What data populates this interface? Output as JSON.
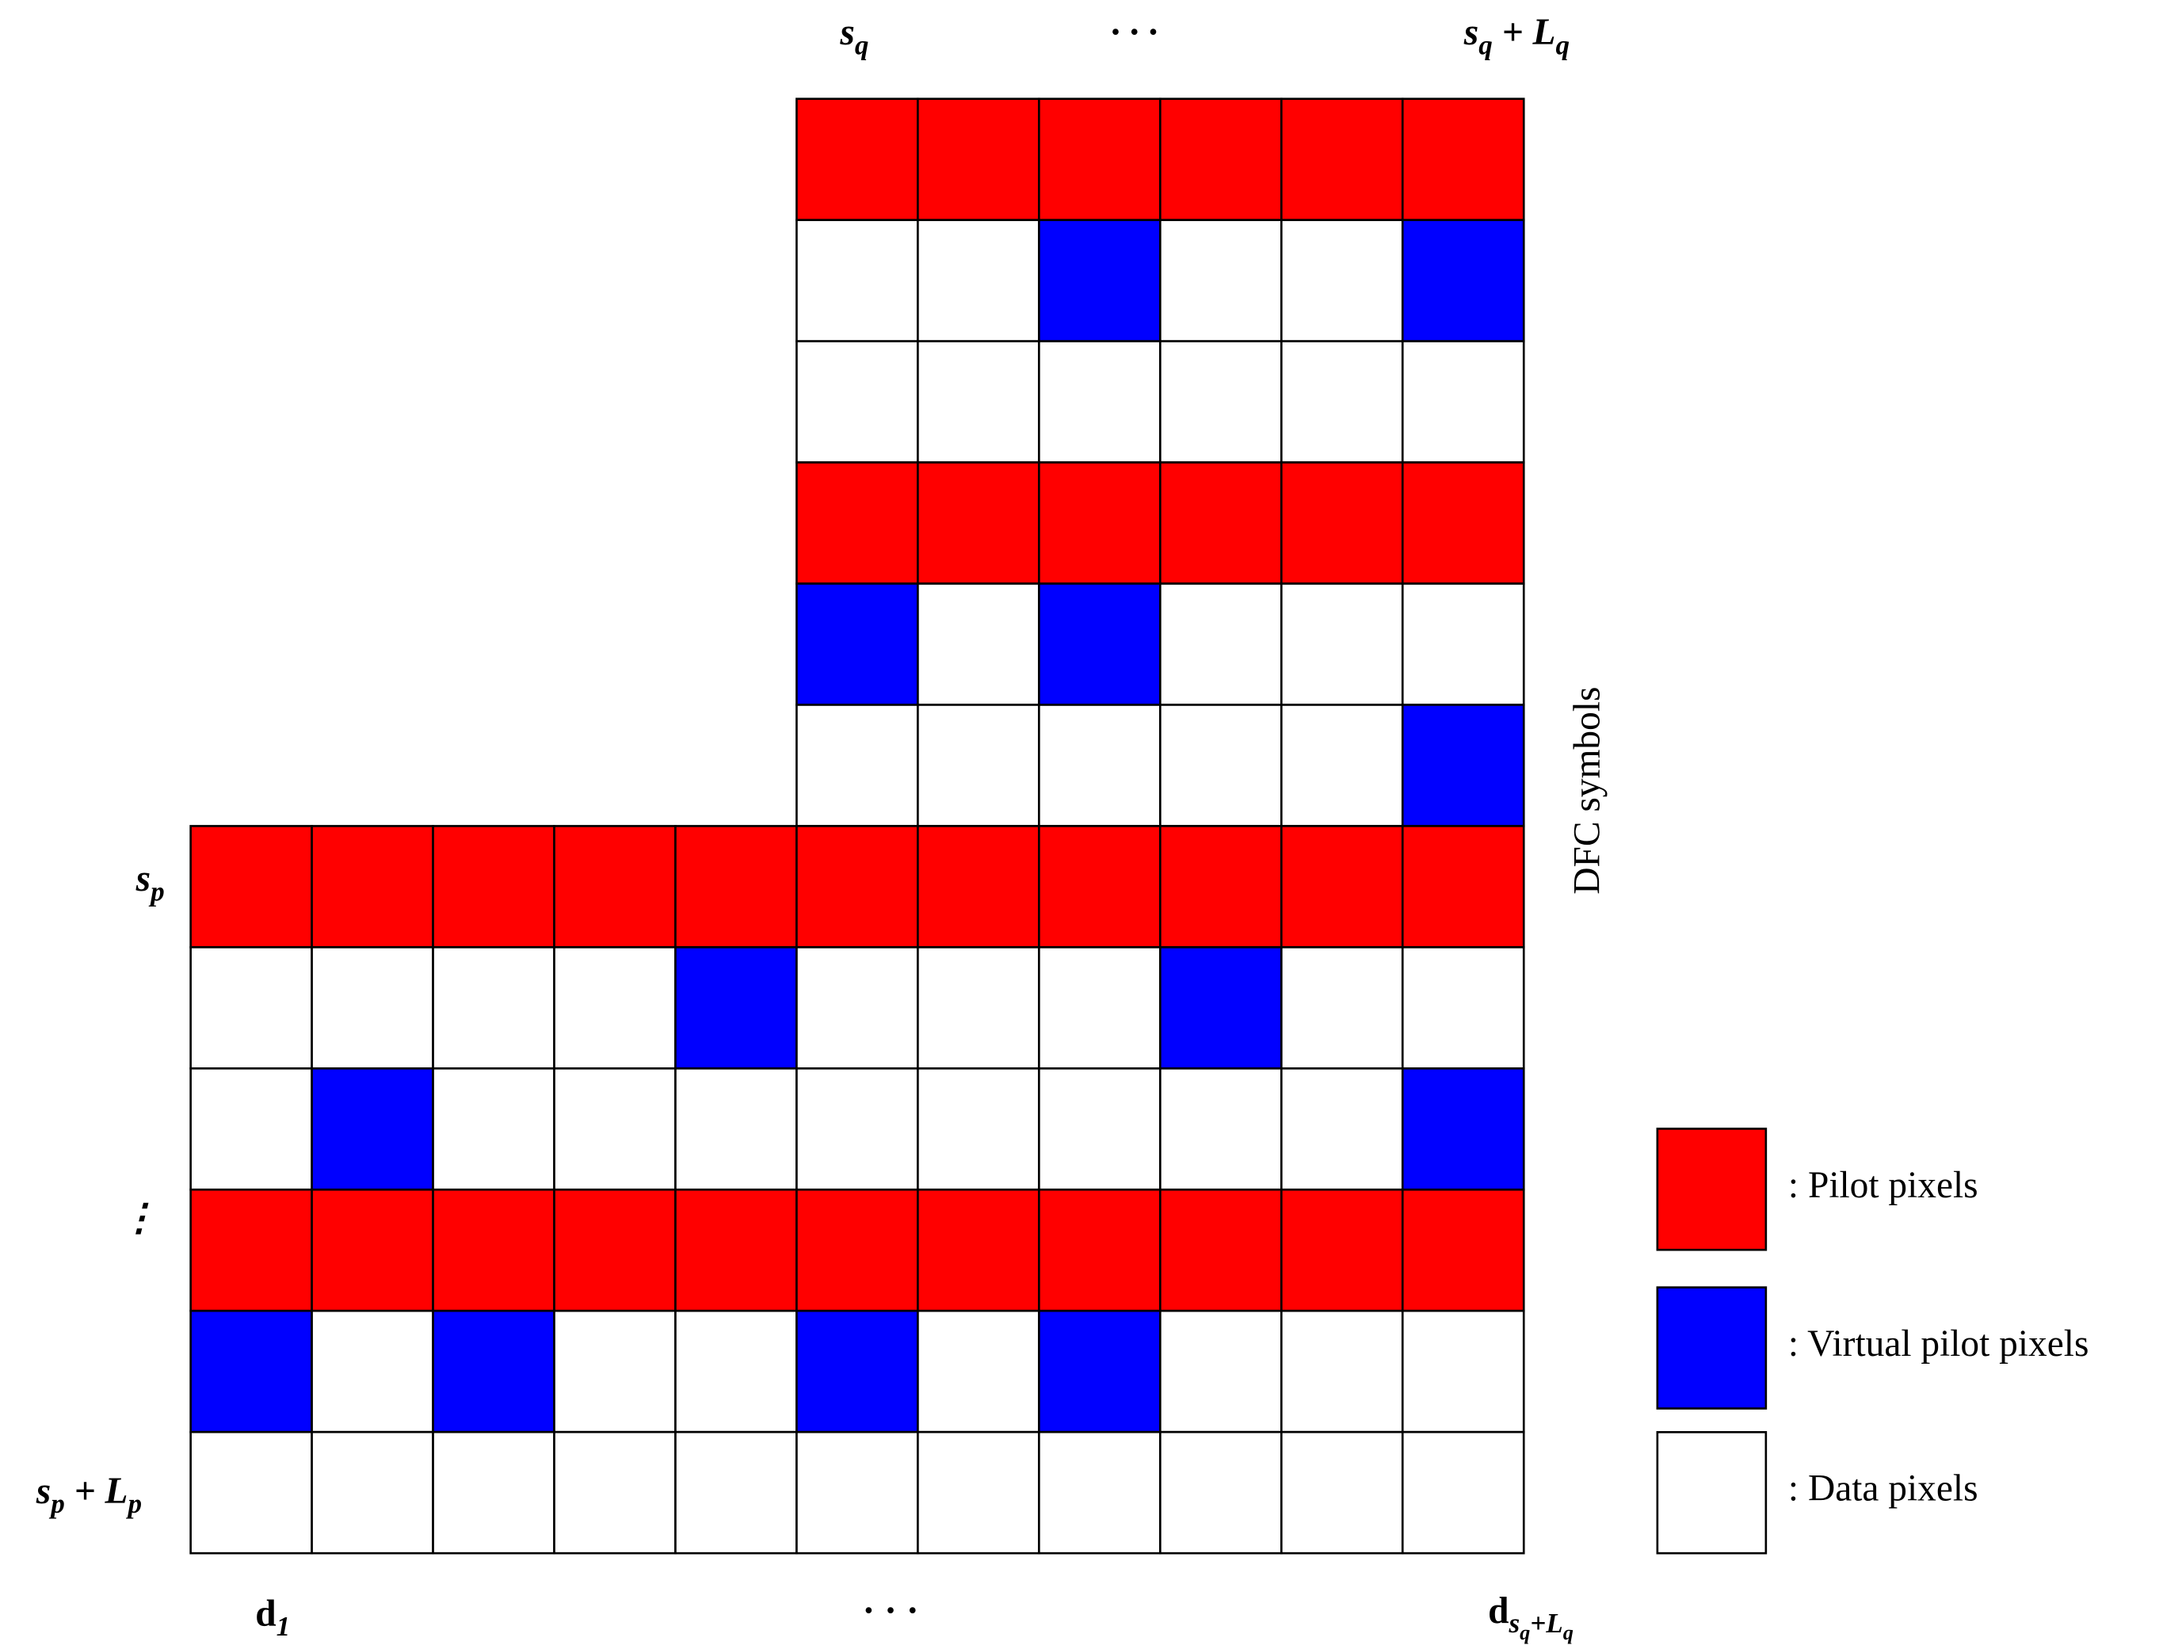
{
  "top_labels": [
    [
      {
        "t": "s",
        "lv": 0
      },
      {
        "t": "q",
        "lv": 1
      }
    ],
    [
      {
        "t": "· · ·",
        "lv": 0
      }
    ],
    [
      {
        "t": "s",
        "lv": 0
      },
      {
        "t": "q",
        "lv": 1
      },
      {
        "t": " + L",
        "lv": 0
      },
      {
        "t": "q",
        "lv": 1
      }
    ]
  ],
  "left_labels": [
    [
      {
        "t": "s",
        "lv": 0
      },
      {
        "t": "p",
        "lv": 1
      }
    ],
    [
      {
        "t": "⋮",
        "lv": 0
      }
    ],
    [
      {
        "t": "s",
        "lv": 0
      },
      {
        "t": "p",
        "lv": 1
      },
      {
        "t": " + L",
        "lv": 0
      },
      {
        "t": "p",
        "lv": 1
      }
    ]
  ],
  "bottom_labels": [
    [
      {
        "t": "d",
        "lv": 0
      },
      {
        "t": "1",
        "lv": 1
      }
    ],
    [
      {
        "t": "· · ·",
        "lv": 0
      }
    ],
    [
      {
        "t": "d",
        "lv": 0
      },
      {
        "t": "s",
        "lv": 1
      },
      {
        "t": "q",
        "lv": 2
      },
      {
        "t": "+L",
        "lv": 1
      },
      {
        "t": "q",
        "lv": 2
      }
    ]
  ],
  "axis_label": "DFC symbols",
  "legend": [
    {
      "label": ":  Pilot pixels",
      "color": "#ff0000"
    },
    {
      "label": ":  Virtual pilot pixels",
      "color": "#0000ff"
    },
    {
      "label": ":  Data pixels",
      "color": "#ffffff"
    }
  ]
}
